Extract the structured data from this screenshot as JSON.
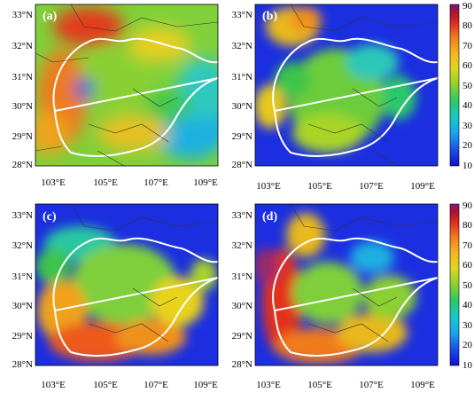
{
  "figure": {
    "panels": [
      {
        "id": "a",
        "label": "(a)",
        "x_ticks": [
          "103°E",
          "105°E",
          "107°E",
          "109°E"
        ],
        "y_ticks": [
          "33°N",
          "32°N",
          "31°N",
          "30°N",
          "29°N",
          "28°N"
        ]
      },
      {
        "id": "b",
        "label": "(b)",
        "x_ticks": [
          "103°E",
          "105°E",
          "107°E",
          "109°E"
        ],
        "y_ticks": [
          "33°N",
          "32°N",
          "31°N",
          "30°N",
          "29°N",
          "28°N"
        ]
      },
      {
        "id": "c",
        "label": "(c)",
        "x_ticks": [
          "103°E",
          "105°E",
          "107°E",
          "109°E"
        ],
        "y_ticks": [
          "33°N",
          "32°N",
          "31°N",
          "30°N",
          "29°N",
          "28°N"
        ]
      },
      {
        "id": "d",
        "label": "(d)",
        "x_ticks": [
          "103°E",
          "105°E",
          "107°E",
          "109°E"
        ],
        "y_ticks": [
          "33°N",
          "32°N",
          "31°N",
          "30°N",
          "29°N",
          "28°N"
        ]
      }
    ],
    "colorbar": {
      "ticks": [
        "90",
        "80",
        "70",
        "60",
        "50",
        "40",
        "30",
        "20",
        "10"
      ],
      "min": 10,
      "max": 90,
      "colors": [
        "#1010d0",
        "#1a4fe6",
        "#1aa3f0",
        "#17c9c9",
        "#2ac86a",
        "#8cd12a",
        "#d8d820",
        "#f5b41c",
        "#f07a1c",
        "#e03020",
        "#b01030",
        "#7a1a7a"
      ]
    },
    "palette": {
      "blue": "#1b2fe0",
      "cyan": "#1cc3d6",
      "green": "#3ec44a",
      "lime": "#a8d423",
      "yellow": "#e8d21e",
      "orange": "#f2921c",
      "red": "#e3301c"
    }
  }
}
